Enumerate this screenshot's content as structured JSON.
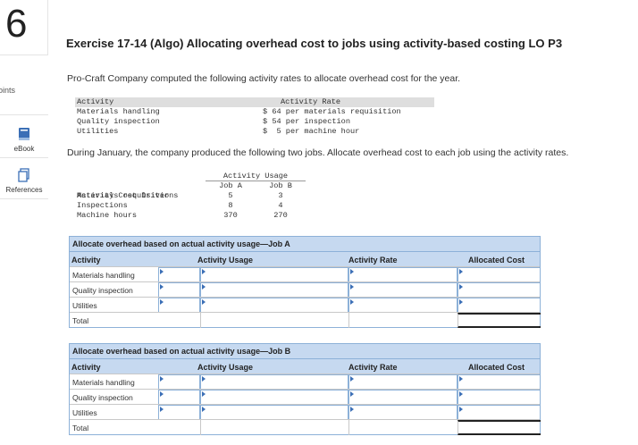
{
  "question_number": "6",
  "sidebar": {
    "points_label": "points",
    "tools": [
      {
        "label": "eBook",
        "icon": "ebook-icon"
      },
      {
        "label": "References",
        "icon": "references-icon"
      }
    ]
  },
  "title": "Exercise 17-14 (Algo) Allocating overhead cost to jobs using activity-based costing LO P3",
  "intro": "Pro-Craft Company computed the following activity rates to allocate overhead cost for the year.",
  "rates_table": {
    "headers": [
      "Activity",
      "Activity Rate"
    ],
    "rows": [
      {
        "activity": "Materials handling",
        "rate": "$ 64 per materials requisition"
      },
      {
        "activity": "Quality inspection",
        "rate": "$ 54 per inspection"
      },
      {
        "activity": "Utilities",
        "rate": "$  5 per machine hour"
      }
    ]
  },
  "instruction": "During January, the company produced the following two jobs. Allocate overhead cost to each job using the activity rates.",
  "usage_table": {
    "super_header": "Activity Usage",
    "headers": [
      "Activity Cost Driver",
      "Job A",
      "Job B"
    ],
    "rows": [
      {
        "driver": "Materials requisitions",
        "job_a": "5",
        "job_b": "3"
      },
      {
        "driver": "Inspections",
        "job_a": "8",
        "job_b": "4"
      },
      {
        "driver": "Machine hours",
        "job_a": "370",
        "job_b": "270"
      }
    ]
  },
  "alloc_a": {
    "caption": "Allocate overhead based on actual activity usage—Job A",
    "headers": [
      "Activity",
      "Activity Usage",
      "Activity Rate",
      "Allocated Cost"
    ],
    "rows": [
      "Materials handling",
      "Quality inspection",
      "Utilities"
    ],
    "total_label": "Total"
  },
  "alloc_b": {
    "caption": "Allocate overhead based on actual activity usage—Job B",
    "headers": [
      "Activity",
      "Activity Usage",
      "Activity Rate",
      "Allocated Cost"
    ],
    "rows": [
      "Materials handling",
      "Quality inspection",
      "Utilities"
    ],
    "total_label": "Total"
  }
}
